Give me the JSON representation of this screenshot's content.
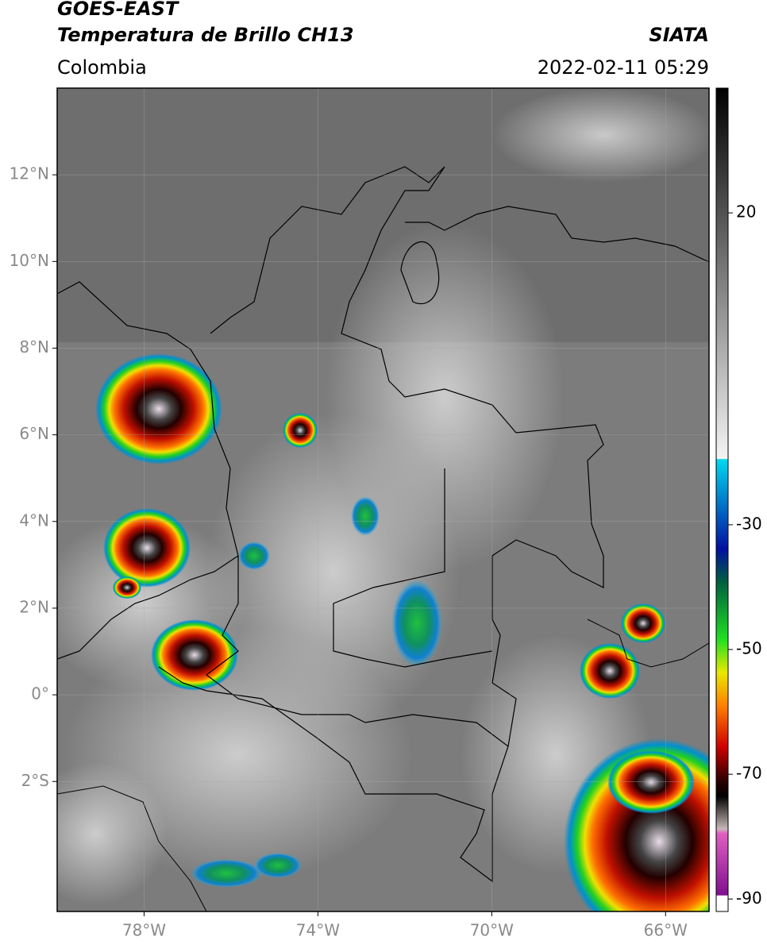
{
  "header": {
    "title": "GOES-EAST",
    "subtitle": "Temperatura de Brillo CH13",
    "source": "SIATA",
    "region": "Colombia",
    "datetime": "2022-02-11 05:29"
  },
  "map": {
    "lon_range": [
      -80,
      -65
    ],
    "lat_range": [
      -5,
      14
    ],
    "lon_ticks": [
      {
        "value": -78,
        "label": "78°W"
      },
      {
        "value": -74,
        "label": "74°W"
      },
      {
        "value": -70,
        "label": "70°W"
      },
      {
        "value": -66,
        "label": "66°W"
      }
    ],
    "lat_ticks": [
      {
        "value": 12,
        "label": "12°N"
      },
      {
        "value": 10,
        "label": "10°N"
      },
      {
        "value": 8,
        "label": "8°N"
      },
      {
        "value": 6,
        "label": "6°N"
      },
      {
        "value": 4,
        "label": "4°N"
      },
      {
        "value": 2,
        "label": "2°N"
      },
      {
        "value": 0,
        "label": "0°"
      },
      {
        "value": -2,
        "label": "2°S"
      }
    ],
    "grid": true
  },
  "colorbar": {
    "range": [
      -92,
      40
    ],
    "ticks": [
      20,
      -30,
      -50,
      -70,
      -90
    ]
  }
}
